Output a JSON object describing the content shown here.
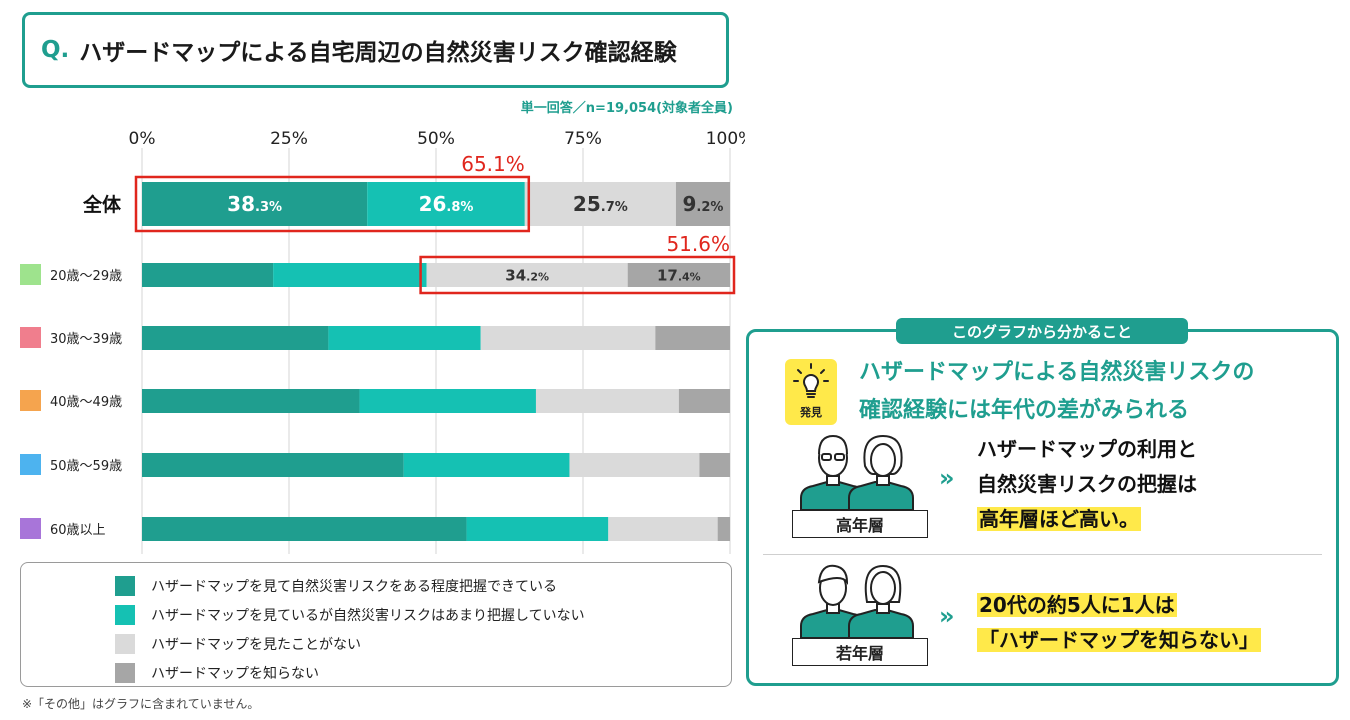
{
  "title": {
    "prefix": "Q.",
    "text": "ハザードマップによる自宅周辺の自然災害リスク確認経験"
  },
  "note": "単一回答／n=19,054(対象者全員)",
  "chart_data": {
    "type": "bar",
    "orientation": "horizontal",
    "stacked": true,
    "xlim": [
      0,
      100
    ],
    "x_ticks": [
      "0%",
      "25%",
      "50%",
      "75%",
      "100%"
    ],
    "categories": [
      "全体",
      "20歳～29歳",
      "30歳～39歳",
      "40歳～49歳",
      "50歳～59歳",
      "60歳以上"
    ],
    "category_marker_colors": [
      null,
      "#9ee38d",
      "#f07e8d",
      "#f5a44e",
      "#4db3ef",
      "#a875d9"
    ],
    "series": [
      {
        "name": "ハザードマップを見て自然災害リスクをある程度把握できている",
        "color": "#1f9e8f",
        "values": [
          38.3,
          22.3,
          31.7,
          37.0,
          44.5,
          55.2
        ]
      },
      {
        "name": "ハザードマップを見ているが自然災害リスクはあまり把握していない",
        "color": "#15c1b3",
        "values": [
          26.8,
          26.1,
          25.9,
          30.0,
          28.2,
          24.1
        ]
      },
      {
        "name": "ハザードマップを見たことがない",
        "color": "#dadada",
        "values": [
          25.7,
          34.2,
          29.7,
          24.3,
          22.1,
          18.6
        ]
      },
      {
        "name": "ハザードマップを知らない",
        "color": "#a6a6a6",
        "values": [
          9.2,
          17.4,
          12.7,
          8.7,
          5.2,
          2.1
        ]
      }
    ],
    "data_labels": [
      {
        "category": "全体",
        "series": 0,
        "main": "38",
        "sub": ".3%"
      },
      {
        "category": "全体",
        "series": 1,
        "main": "26",
        "sub": ".8%"
      },
      {
        "category": "全体",
        "series": 2,
        "main": "25",
        "sub": ".7%"
      },
      {
        "category": "全体",
        "series": 3,
        "main": "9",
        "sub": ".2%"
      },
      {
        "category": "20歳～29歳",
        "series": 2,
        "main": "34",
        "sub": ".2%"
      },
      {
        "category": "20歳～29歳",
        "series": 3,
        "main": "17",
        "sub": ".4%"
      }
    ],
    "annotations": [
      {
        "text": "65.1%",
        "category": "全体",
        "series_from": 0,
        "series_to": 1,
        "color": "#e0261d"
      },
      {
        "text": "51.6%",
        "category": "20歳～29歳",
        "series_from": 2,
        "series_to": 3,
        "color": "#e0261d"
      }
    ]
  },
  "footnote": "※「その他」はグラフに含まれていません。",
  "panel": {
    "tag": "このグラフから分かること",
    "badge_label": "発見",
    "headline": [
      "ハザードマップによる自然災害リスクの",
      "確認経験には年代の差がみられる"
    ],
    "groups": [
      {
        "label": "高年層",
        "chevron": "»",
        "lines": [
          "ハザードマップの利用と",
          "自然災害リスクの把握は",
          "高年層ほど高い。"
        ],
        "highlight": [
          2
        ]
      },
      {
        "label": "若年層",
        "chevron": "»",
        "lines": [
          "20代の約5人に1人は",
          "「ハザードマップを知らない」"
        ],
        "highlight": [
          0,
          1
        ]
      }
    ]
  }
}
